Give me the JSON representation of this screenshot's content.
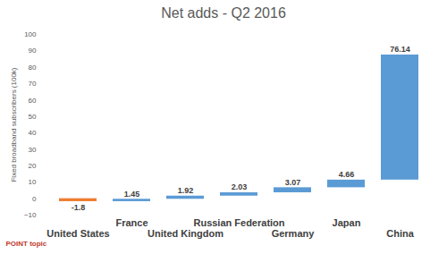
{
  "chart_data": {
    "type": "waterfall",
    "title": "Net adds - Q2 2016",
    "y_label": "Fixed broadband subscribers (100k)",
    "categories": [
      "United States",
      "France",
      "United Kingdom",
      "Russian Federation",
      "Germany",
      "Japan",
      "China"
    ],
    "values": [
      -1.8,
      1.45,
      1.92,
      2.03,
      3.07,
      4.66,
      76.14
    ],
    "colors": [
      "#ed7d31",
      "#5b9bd5",
      "#5b9bd5",
      "#5b9bd5",
      "#5b9bd5",
      "#5b9bd5",
      "#5b9bd5"
    ],
    "ylim": [
      -10,
      100
    ],
    "yticks": [
      -10,
      0,
      10,
      20,
      30,
      40,
      50,
      60,
      70,
      80,
      90,
      100
    ],
    "grid": false,
    "data_labels": true,
    "annotations": [
      "POINT topic"
    ]
  }
}
